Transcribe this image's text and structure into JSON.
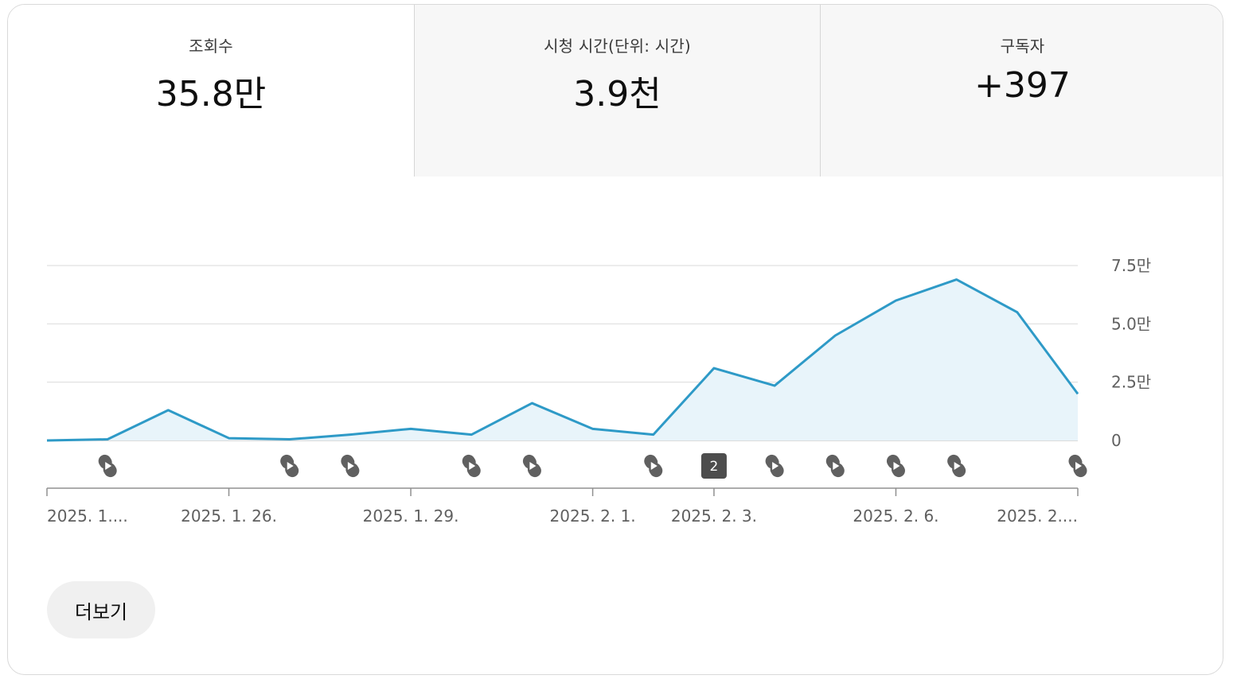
{
  "tabs": [
    {
      "label": "조회수",
      "value": "35.8만"
    },
    {
      "label": "시청 시간(단위: 시간)",
      "value": "3.9천"
    },
    {
      "label": "구독자",
      "value": "+397"
    }
  ],
  "more_button": "더보기",
  "colors": {
    "line": "#2e9ac7",
    "area": "#e8f4fa",
    "marker": "#606060",
    "grid": "#e5e5e5"
  },
  "chart_data": {
    "type": "area",
    "y_ticks": [
      {
        "value": 0,
        "label": "0"
      },
      {
        "value": 25000,
        "label": "2.5만"
      },
      {
        "value": 50000,
        "label": "5.0만"
      },
      {
        "value": 75000,
        "label": "7.5만"
      }
    ],
    "ylim": [
      0,
      75000
    ],
    "x_labels": [
      {
        "index": 0,
        "label": "2025. 1...."
      },
      {
        "index": 3,
        "label": "2025. 1. 26."
      },
      {
        "index": 6,
        "label": "2025. 1. 29."
      },
      {
        "index": 9,
        "label": "2025. 2. 1."
      },
      {
        "index": 11,
        "label": "2025. 2. 3."
      },
      {
        "index": 14,
        "label": "2025. 2. 6."
      },
      {
        "index": 17,
        "label": "2025. 2...."
      }
    ],
    "values": [
      0,
      500,
      13000,
      1000,
      500,
      2500,
      5000,
      2500,
      16000,
      5000,
      2500,
      31000,
      23500,
      45000,
      60000,
      69000,
      55000,
      20000
    ],
    "markers": [
      {
        "index": 1,
        "type": "shorts-icon"
      },
      {
        "index": 4,
        "type": "shorts-icon"
      },
      {
        "index": 5,
        "type": "shorts-icon"
      },
      {
        "index": 7,
        "type": "shorts-icon"
      },
      {
        "index": 8,
        "type": "shorts-icon"
      },
      {
        "index": 10,
        "type": "shorts-icon"
      },
      {
        "index": 11,
        "type": "badge",
        "label": "2"
      },
      {
        "index": 12,
        "type": "shorts-icon"
      },
      {
        "index": 13,
        "type": "shorts-icon"
      },
      {
        "index": 14,
        "type": "shorts-icon"
      },
      {
        "index": 15,
        "type": "shorts-icon"
      },
      {
        "index": 17,
        "type": "shorts-icon"
      }
    ]
  }
}
